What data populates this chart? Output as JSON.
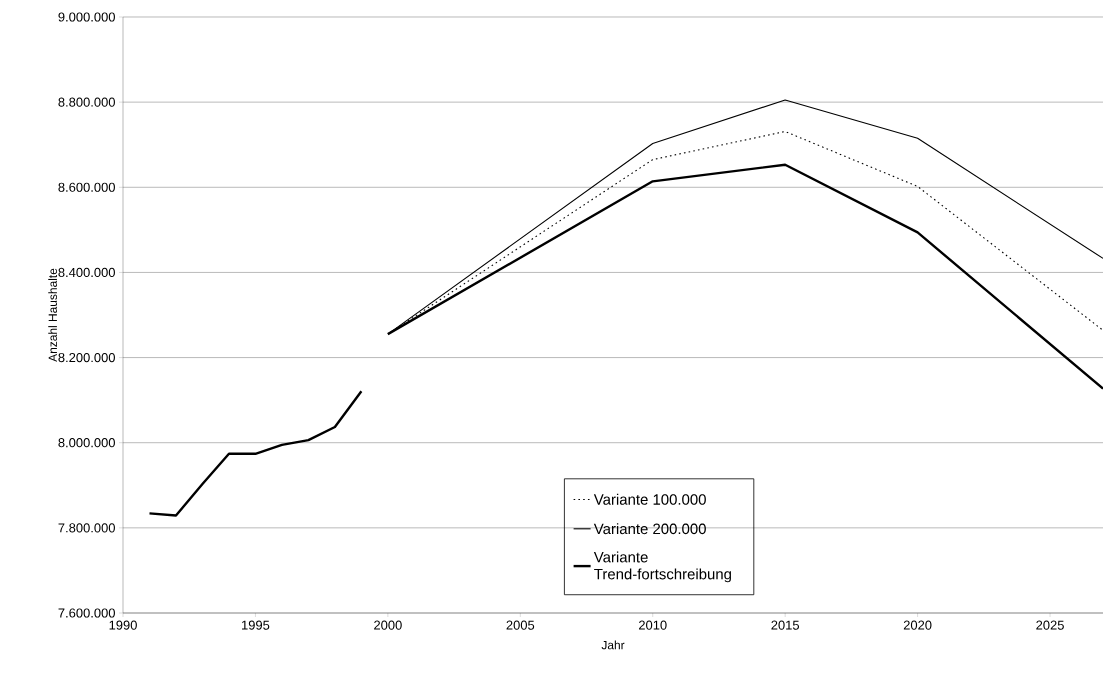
{
  "chart_data": {
    "type": "line",
    "xlabel": "Jahr",
    "ylabel": "Anzahl Haushalte",
    "xlim": [
      1990,
      2027
    ],
    "xticks": [
      1990,
      1995,
      2000,
      2005,
      2010,
      2015,
      2020,
      2025
    ],
    "ylim": [
      7600000,
      9000000
    ],
    "yticks": [
      {
        "value": 7600000,
        "label": "7.600.000"
      },
      {
        "value": 7800000,
        "label": "7.800.000"
      },
      {
        "value": 8000000,
        "label": "8.000.000"
      },
      {
        "value": 8200000,
        "label": "8.200.000"
      },
      {
        "value": 8400000,
        "label": "8.400.000"
      },
      {
        "value": 8600000,
        "label": "8.600.000"
      },
      {
        "value": 8800000,
        "label": "8.800.000"
      },
      {
        "value": 9000000,
        "label": "9.000.000"
      }
    ],
    "grid": "y",
    "legend": "bottom",
    "marker": "none",
    "series": [
      {
        "color": "#000000",
        "line_style": "solid",
        "x": [
          1991,
          1992,
          1993,
          1994,
          1995,
          1996,
          1997,
          1998,
          1999
        ],
        "values": [
          7834000,
          7829000,
          7903000,
          7974000,
          7974000,
          7995000,
          8006000,
          8037000,
          8121000
        ]
      },
      {
        "name": "Variante 100.000",
        "color": "#000000",
        "line_style": "dotted",
        "x": [
          2000,
          2010,
          2015,
          2020,
          2027
        ],
        "values": [
          8255000,
          8665000,
          8731000,
          8602000,
          8264000
        ]
      },
      {
        "name": "Variante 200.000",
        "color": "#000000",
        "line_style": "solid",
        "x": [
          2000,
          2010,
          2015,
          2020,
          2027
        ],
        "values": [
          8255000,
          8703000,
          8805000,
          8715000,
          8433000
        ]
      },
      {
        "name": "Variante Trend-fortschreibung",
        "color": "#000000",
        "line_style": "solid",
        "x": [
          2000,
          2010,
          2015,
          2020,
          2027
        ],
        "values": [
          8255000,
          8614000,
          8653000,
          8494000,
          8127000
        ]
      }
    ]
  }
}
